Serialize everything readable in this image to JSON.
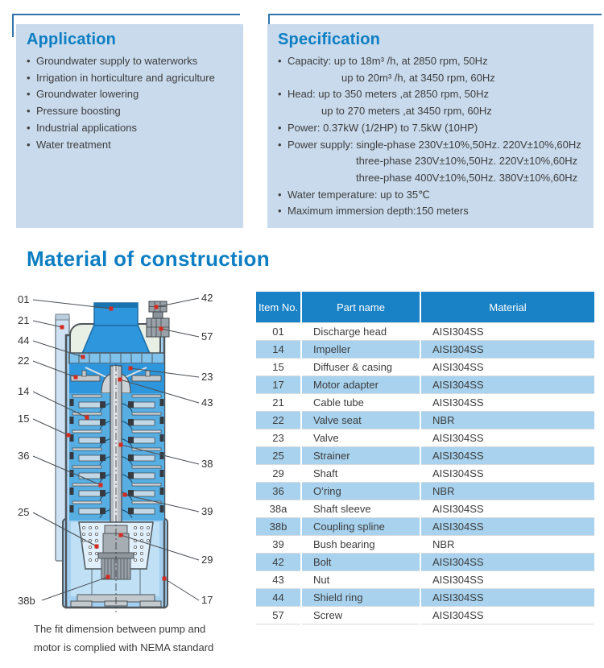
{
  "colors": {
    "accent_blue": "#0d7ec3",
    "bracket_line": "#3173a8",
    "panel_bg": "#c8daec",
    "table_header_bg": "#1981c5",
    "table_alt_row_bg": "#a8d2ee",
    "body_text": "#3d3d3d",
    "callout_marker_red": "#d42b1e"
  },
  "application": {
    "title": "Application",
    "items": [
      "Groundwater supply to waterworks",
      "Irrigation in horticulture and agriculture",
      "Groundwater lowering",
      "Pressure boosting",
      "Industrial applications",
      "Water treatment"
    ]
  },
  "specification": {
    "title": "Specification",
    "items": [
      {
        "bullet": true,
        "indent": 0,
        "text": "Capacity: up to 18m³ /h, at 2850 rpm, 50Hz"
      },
      {
        "bullet": false,
        "indent": 67,
        "text": "up to 20m³ /h, at 3450 rpm, 60Hz"
      },
      {
        "bullet": true,
        "indent": 0,
        "text": "Head: up to 350 meters ,at 2850 rpm, 50Hz"
      },
      {
        "bullet": false,
        "indent": 42,
        "text": "up to 270 meters ,at 3450 rpm, 60Hz"
      },
      {
        "bullet": true,
        "indent": 0,
        "text": "Power: 0.37kW (1/2HP) to 7.5kW (10HP)"
      },
      {
        "bullet": true,
        "indent": 0,
        "text": "Power supply: single-phase 230V±10%,50Hz. 220V±10%,60Hz"
      },
      {
        "bullet": false,
        "indent": 85,
        "text": "three-phase 230V±10%,50Hz.  220V±10%,60Hz"
      },
      {
        "bullet": false,
        "indent": 85,
        "text": "three-phase 400V±10%,50Hz.  380V±10%,60Hz"
      },
      {
        "bullet": true,
        "indent": 0,
        "text": "Water temperature: up to 35℃"
      },
      {
        "bullet": true,
        "indent": 0,
        "text": "Maximum immersion depth:150 meters"
      }
    ]
  },
  "material": {
    "title": "Material of construction",
    "table": {
      "columns": [
        "Item No.",
        "Part name",
        "Material"
      ],
      "rows": [
        [
          "01",
          "Discharge head",
          "AISI304SS"
        ],
        [
          "14",
          "Impeller",
          "AISI304SS"
        ],
        [
          "15",
          "Diffuser & casing",
          "AISI304SS"
        ],
        [
          "17",
          "Motor adapter",
          "AISI304SS"
        ],
        [
          "21",
          "Cable tube",
          "AISI304SS"
        ],
        [
          "22",
          "Valve seat",
          "NBR"
        ],
        [
          "23",
          "Valve",
          "AISI304SS"
        ],
        [
          "25",
          "Strainer",
          "AISI304SS"
        ],
        [
          "29",
          "Shaft",
          "AISI304SS"
        ],
        [
          "36",
          "O’ring",
          "NBR"
        ],
        [
          "38a",
          "Shaft sleeve",
          "AISI304SS"
        ],
        [
          "38b",
          "Coupling spline",
          "AISI304SS"
        ],
        [
          "39",
          "Bush bearing",
          "NBR"
        ],
        [
          "42",
          "Bolt",
          "AISI304SS"
        ],
        [
          "43",
          "Nut",
          "AISI304SS"
        ],
        [
          "44",
          "Shield ring",
          "AISI304SS"
        ],
        [
          "57",
          "Screw",
          "AISI304SS"
        ]
      ]
    },
    "diagram": {
      "callouts": [
        {
          "label": "01"
        },
        {
          "label": "21"
        },
        {
          "label": "44"
        },
        {
          "label": "22"
        },
        {
          "label": "14"
        },
        {
          "label": "15"
        },
        {
          "label": "36"
        },
        {
          "label": "25"
        },
        {
          "label": "38b"
        },
        {
          "label": "42"
        },
        {
          "label": "57"
        },
        {
          "label": "23"
        },
        {
          "label": "43"
        },
        {
          "label": "38"
        },
        {
          "label": "39"
        },
        {
          "label": "29"
        },
        {
          "label": "17"
        }
      ],
      "caption_line1": "The fit dimension between pump and",
      "caption_line2": "motor is complied with NEMA standard"
    }
  }
}
